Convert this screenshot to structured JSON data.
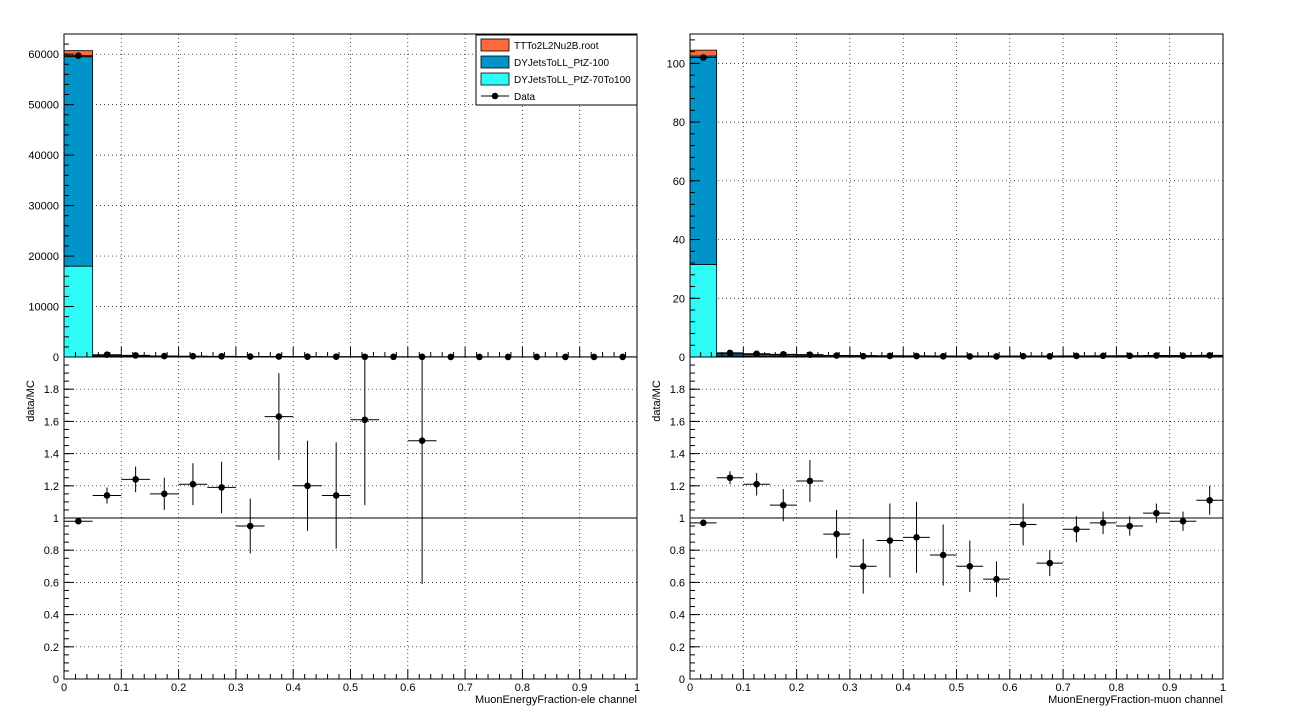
{
  "colors": {
    "TTTo2L2Nu2B": "#ff6a3d",
    "DYJetsToLL_PtZ-100": "#0094c8",
    "DYJetsToLL_PtZ-70To100": "#2efaf6",
    "data": "#000000"
  },
  "legend": {
    "entries": [
      {
        "label": "TTTo2L2Nu2B.root",
        "kind": "fill",
        "color": "#ff6a3d"
      },
      {
        "label": "DYJetsToLL_PtZ-100",
        "kind": "fill",
        "color": "#0094c8"
      },
      {
        "label": "DYJetsToLL_PtZ-70To100",
        "kind": "fill",
        "color": "#2efaf6"
      },
      {
        "label": "Data",
        "kind": "marker",
        "color": "#000000"
      }
    ]
  },
  "chart_data": [
    {
      "panel": "left-top",
      "type": "bar",
      "stacked": true,
      "xlim": [
        0,
        1
      ],
      "ylim": [
        0,
        64000
      ],
      "yticks": [
        "0",
        "10000",
        "20000",
        "30000",
        "40000",
        "50000",
        "60000"
      ],
      "ytick_values": [
        0,
        10000,
        20000,
        30000,
        40000,
        50000,
        60000
      ],
      "grid": true,
      "legend_position": "top-right",
      "bin_edges": [
        0,
        0.05,
        0.1,
        0.15,
        0.2,
        0.25,
        0.3,
        0.35,
        0.4,
        0.45,
        0.5,
        0.55,
        0.6,
        0.65,
        0.7,
        0.75,
        0.8,
        0.85,
        0.9,
        0.95,
        1.0
      ],
      "series": [
        {
          "name": "DYJetsToLL_PtZ-70To100",
          "values": [
            18000,
            110,
            70,
            40,
            30,
            25,
            20,
            15,
            15,
            12,
            10,
            8,
            8,
            6,
            6,
            5,
            5,
            5,
            4,
            4
          ]
        },
        {
          "name": "DYJetsToLL_PtZ-100",
          "values": [
            41500,
            220,
            150,
            100,
            80,
            70,
            60,
            45,
            40,
            35,
            30,
            25,
            25,
            20,
            18,
            15,
            15,
            14,
            12,
            12
          ]
        },
        {
          "name": "TTTo2L2Nu2B.root",
          "values": [
            1200,
            60,
            40,
            30,
            25,
            20,
            18,
            15,
            12,
            10,
            10,
            8,
            8,
            7,
            6,
            5,
            5,
            5,
            4,
            4
          ]
        }
      ],
      "data": {
        "name": "Data",
        "x": [
          0.025,
          0.075,
          0.125,
          0.175,
          0.225,
          0.275,
          0.325,
          0.375,
          0.425,
          0.475,
          0.525,
          0.575,
          0.625,
          0.675,
          0.725,
          0.775,
          0.825,
          0.875,
          0.925,
          0.975
        ],
        "y": [
          59700,
          450,
          320,
          190,
          160,
          130,
          90,
          100,
          70,
          60,
          50,
          30,
          30,
          20,
          20,
          20,
          20,
          18,
          15,
          15
        ]
      }
    },
    {
      "panel": "left-bottom",
      "type": "scatter",
      "xlabel": "MuonEnergyFraction-ele channel",
      "ylabel": "data/MC",
      "xlim": [
        0,
        1
      ],
      "ylim": [
        0,
        2
      ],
      "xticks": [
        "0",
        "0.1",
        "0.2",
        "0.3",
        "0.4",
        "0.5",
        "0.6",
        "0.7",
        "0.8",
        "0.9",
        "1"
      ],
      "xtick_values": [
        0,
        0.1,
        0.2,
        0.3,
        0.4,
        0.5,
        0.6,
        0.7,
        0.8,
        0.9,
        1.0
      ],
      "yticks": [
        "0",
        "0.2",
        "0.4",
        "0.6",
        "0.8",
        "1",
        "1.2",
        "1.4",
        "1.6",
        "1.8"
      ],
      "ytick_values": [
        0,
        0.2,
        0.4,
        0.6,
        0.8,
        1.0,
        1.2,
        1.4,
        1.6,
        1.8
      ],
      "grid": true,
      "reference_line": 1,
      "points": [
        {
          "x": 0.025,
          "y": 0.98,
          "err": 0.01
        },
        {
          "x": 0.075,
          "y": 1.14,
          "err": 0.05
        },
        {
          "x": 0.125,
          "y": 1.24,
          "err": 0.08
        },
        {
          "x": 0.175,
          "y": 1.15,
          "err": 0.1
        },
        {
          "x": 0.225,
          "y": 1.21,
          "err": 0.13
        },
        {
          "x": 0.275,
          "y": 1.19,
          "err": 0.16
        },
        {
          "x": 0.325,
          "y": 0.95,
          "err": 0.17
        },
        {
          "x": 0.375,
          "y": 1.63,
          "err": 0.27
        },
        {
          "x": 0.425,
          "y": 1.2,
          "err": 0.28
        },
        {
          "x": 0.475,
          "y": 1.14,
          "err": 0.33
        },
        {
          "x": 0.525,
          "y": 1.61,
          "err": 0.53
        },
        {
          "x": 0.625,
          "y": 1.48,
          "err": 0.89
        }
      ]
    },
    {
      "panel": "right-top",
      "type": "bar",
      "stacked": true,
      "xlim": [
        0,
        1
      ],
      "ylim": [
        0,
        110
      ],
      "yticks": [
        "0",
        "20",
        "40",
        "60",
        "80",
        "100"
      ],
      "ytick_values": [
        0,
        20,
        40,
        60,
        80,
        100
      ],
      "grid": true,
      "bin_edges": [
        0,
        0.05,
        0.1,
        0.15,
        0.2,
        0.25,
        0.3,
        0.35,
        0.4,
        0.45,
        0.5,
        0.55,
        0.6,
        0.65,
        0.7,
        0.75,
        0.8,
        0.85,
        0.9,
        0.95,
        1.0
      ],
      "series": [
        {
          "name": "DYJetsToLL_PtZ-70To100",
          "values": [
            31.5,
            0.35,
            0.3,
            0.25,
            0.2,
            0.15,
            0.15,
            0.12,
            0.12,
            0.1,
            0.1,
            0.1,
            0.1,
            0.1,
            0.12,
            0.12,
            0.12,
            0.15,
            0.15,
            0.15
          ]
        },
        {
          "name": "DYJetsToLL_PtZ-100",
          "values": [
            71,
            0.7,
            0.6,
            0.5,
            0.4,
            0.35,
            0.3,
            0.28,
            0.25,
            0.22,
            0.2,
            0.2,
            0.2,
            0.22,
            0.25,
            0.25,
            0.28,
            0.3,
            0.3,
            0.32
          ]
        },
        {
          "name": "TTTo2L2Nu2B.root",
          "values": [
            2,
            0.1,
            0.1,
            0.08,
            0.06,
            0.05,
            0.05,
            0.04,
            0.04,
            0.04,
            0.03,
            0.03,
            0.03,
            0.03,
            0.03,
            0.03,
            0.03,
            0.03,
            0.03,
            0.03
          ]
        }
      ],
      "data": {
        "name": "Data",
        "x": [
          0.025,
          0.075,
          0.125,
          0.175,
          0.225,
          0.275,
          0.325,
          0.375,
          0.425,
          0.475,
          0.525,
          0.575,
          0.625,
          0.675,
          0.725,
          0.775,
          0.825,
          0.875,
          0.925,
          0.975
        ],
        "y": [
          102,
          1.4,
          1.1,
          0.9,
          0.8,
          0.5,
          0.3,
          0.35,
          0.32,
          0.25,
          0.2,
          0.2,
          0.3,
          0.25,
          0.35,
          0.4,
          0.4,
          0.5,
          0.45,
          0.55
        ]
      }
    },
    {
      "panel": "right-bottom",
      "type": "scatter",
      "xlabel": "MuonEnergyFraction-muon channel",
      "ylabel": "data/MC",
      "xlim": [
        0,
        1
      ],
      "ylim": [
        0,
        2
      ],
      "xticks": [
        "0",
        "0.1",
        "0.2",
        "0.3",
        "0.4",
        "0.5",
        "0.6",
        "0.7",
        "0.8",
        "0.9",
        "1"
      ],
      "xtick_values": [
        0,
        0.1,
        0.2,
        0.3,
        0.4,
        0.5,
        0.6,
        0.7,
        0.8,
        0.9,
        1.0
      ],
      "yticks": [
        "0",
        "0.2",
        "0.4",
        "0.6",
        "0.8",
        "1",
        "1.2",
        "1.4",
        "1.6",
        "1.8"
      ],
      "ytick_values": [
        0,
        0.2,
        0.4,
        0.6,
        0.8,
        1.0,
        1.2,
        1.4,
        1.6,
        1.8
      ],
      "grid": true,
      "reference_line": 1,
      "points": [
        {
          "x": 0.025,
          "y": 0.97,
          "err": 0.02
        },
        {
          "x": 0.075,
          "y": 1.25,
          "err": 0.04
        },
        {
          "x": 0.125,
          "y": 1.21,
          "err": 0.07
        },
        {
          "x": 0.175,
          "y": 1.08,
          "err": 0.1
        },
        {
          "x": 0.225,
          "y": 1.23,
          "err": 0.13
        },
        {
          "x": 0.275,
          "y": 0.9,
          "err": 0.15
        },
        {
          "x": 0.325,
          "y": 0.7,
          "err": 0.17
        },
        {
          "x": 0.375,
          "y": 0.86,
          "err": 0.23
        },
        {
          "x": 0.425,
          "y": 0.88,
          "err": 0.22
        },
        {
          "x": 0.475,
          "y": 0.77,
          "err": 0.19
        },
        {
          "x": 0.525,
          "y": 0.7,
          "err": 0.16
        },
        {
          "x": 0.575,
          "y": 0.62,
          "err": 0.11
        },
        {
          "x": 0.625,
          "y": 0.96,
          "err": 0.13
        },
        {
          "x": 0.675,
          "y": 0.72,
          "err": 0.08
        },
        {
          "x": 0.725,
          "y": 0.93,
          "err": 0.08
        },
        {
          "x": 0.775,
          "y": 0.97,
          "err": 0.07
        },
        {
          "x": 0.825,
          "y": 0.95,
          "err": 0.06
        },
        {
          "x": 0.875,
          "y": 1.03,
          "err": 0.06
        },
        {
          "x": 0.925,
          "y": 0.98,
          "err": 0.06
        },
        {
          "x": 0.975,
          "y": 1.11,
          "err": 0.09
        }
      ]
    }
  ]
}
